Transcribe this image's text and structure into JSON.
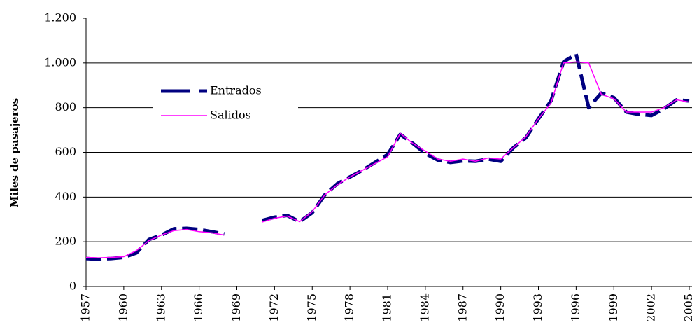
{
  "chart_data": {
    "type": "line",
    "y_label": "Miles de pasajeros",
    "x": [
      1957,
      1958,
      1959,
      1960,
      1961,
      1962,
      1963,
      1964,
      1965,
      1966,
      1967,
      1968,
      1969,
      1970,
      1971,
      1972,
      1973,
      1974,
      1975,
      1976,
      1977,
      1978,
      1979,
      1980,
      1981,
      1982,
      1983,
      1984,
      1985,
      1986,
      1987,
      1988,
      1989,
      1990,
      1991,
      1992,
      1993,
      1994,
      1995,
      1996,
      1997,
      1998,
      1999,
      2000,
      2001,
      2002,
      2003,
      2004,
      2005
    ],
    "series": [
      {
        "name": "Entrados",
        "color": "#000080",
        "dash": true,
        "values": [
          125,
          122,
          125,
          130,
          150,
          210,
          230,
          258,
          260,
          255,
          245,
          235,
          null,
          null,
          295,
          310,
          318,
          290,
          330,
          410,
          460,
          490,
          520,
          555,
          590,
          680,
          640,
          595,
          565,
          555,
          562,
          560,
          570,
          560,
          620,
          665,
          750,
          830,
          1005,
          1040,
          800,
          865,
          845,
          780,
          770,
          765,
          795,
          835,
          830
        ]
      },
      {
        "name": "Salidos",
        "color": "#ff00ff",
        "dash": false,
        "values": [
          130,
          128,
          130,
          133,
          160,
          205,
          230,
          250,
          255,
          245,
          240,
          230,
          null,
          null,
          288,
          305,
          315,
          290,
          335,
          410,
          455,
          490,
          520,
          550,
          580,
          685,
          640,
          605,
          570,
          560,
          570,
          560,
          575,
          570,
          620,
          670,
          750,
          820,
          1000,
          1005,
          1000,
          860,
          840,
          780,
          780,
          780,
          800,
          835,
          825
        ]
      }
    ],
    "xlim": [
      1957,
      2005
    ],
    "xticks": [
      1957,
      1960,
      1963,
      1966,
      1969,
      1972,
      1975,
      1978,
      1981,
      1984,
      1987,
      1990,
      1993,
      1996,
      1999,
      2002,
      2005
    ],
    "ylim": [
      0,
      1200
    ],
    "yticks": [
      0,
      200,
      400,
      600,
      800,
      {
        "value": 1000,
        "label": "1.000"
      },
      {
        "value": 1200,
        "label": "1.200"
      }
    ],
    "grid": true
  }
}
